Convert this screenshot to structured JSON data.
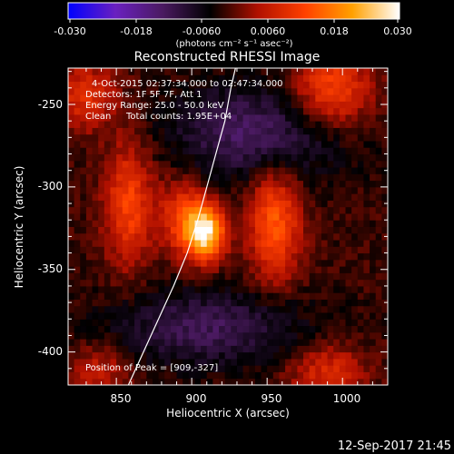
{
  "chart_data": {
    "type": "heatmap",
    "title": "Reconstructed RHESSI Image",
    "xlabel": "Heliocentric X (arcsec)",
    "ylabel": "Heliocentric Y (arcsec)",
    "xlim": [
      818,
      1030
    ],
    "ylim": [
      -420,
      -228
    ],
    "x_ticks": [
      850,
      900,
      950,
      1000
    ],
    "y_ticks": [
      -250,
      -300,
      -350,
      -400
    ],
    "colorbar": {
      "range": [
        -0.03,
        0.03
      ],
      "ticks": [
        "-0.030",
        "-0.018",
        "-0.0060",
        "0.0060",
        "0.018",
        "0.030"
      ],
      "unit_label": "(photons cm⁻² s⁻¹ asec⁻²)",
      "colormap": [
        "#0000ff",
        "#6a20c0",
        "#4a1a60",
        "#000000",
        "#b01000",
        "#ff4000",
        "#ffa000",
        "#ffffff"
      ]
    },
    "annotations": {
      "time_range": "4-Oct-2015 02:37:34.000 to 02:47:34.000",
      "detectors": "Detectors: 1F 5F 7F, Att 1",
      "energy": "Energy Range: 25.0 - 50.0 keV",
      "method": "Clean",
      "counts": "Total counts: 1.95E+04",
      "peak": "Position of Peak = [909,-327]"
    },
    "peak": {
      "x": 909,
      "y": -327,
      "value": 0.03
    },
    "sources": [
      {
        "x": 909,
        "y": -327,
        "amp": 0.03,
        "sx": 9,
        "sy": 12
      },
      {
        "x": 893,
        "y": -318,
        "amp": 0.012,
        "sx": 10,
        "sy": 16
      },
      {
        "x": 858,
        "y": -310,
        "amp": 0.014,
        "sx": 11,
        "sy": 26
      },
      {
        "x": 955,
        "y": -322,
        "amp": 0.016,
        "sx": 12,
        "sy": 24
      },
      {
        "x": 993,
        "y": -240,
        "amp": 0.014,
        "sx": 18,
        "sy": 16
      },
      {
        "x": 830,
        "y": -245,
        "amp": 0.011,
        "sx": 14,
        "sy": 14
      },
      {
        "x": 990,
        "y": -412,
        "amp": 0.01,
        "sx": 18,
        "sy": 12
      },
      {
        "x": 838,
        "y": -412,
        "amp": 0.008,
        "sx": 14,
        "sy": 12
      },
      {
        "x": 935,
        "y": -262,
        "amp": -0.009,
        "sx": 36,
        "sy": 18
      },
      {
        "x": 910,
        "y": -385,
        "amp": -0.01,
        "sx": 45,
        "sy": 16
      },
      {
        "x": 955,
        "y": -280,
        "amp": -0.004,
        "sx": 40,
        "sy": 16
      }
    ],
    "limb_curve": [
      [
        858,
        -420
      ],
      [
        868,
        -400
      ],
      [
        878,
        -380
      ],
      [
        888,
        -360
      ],
      [
        897,
        -340
      ],
      [
        904,
        -320
      ],
      [
        910,
        -300
      ],
      [
        916,
        -280
      ],
      [
        922,
        -260
      ],
      [
        926,
        -240
      ],
      [
        929,
        -228
      ]
    ]
  },
  "footer": {
    "timestamp": "12-Sep-2017 21:45"
  }
}
